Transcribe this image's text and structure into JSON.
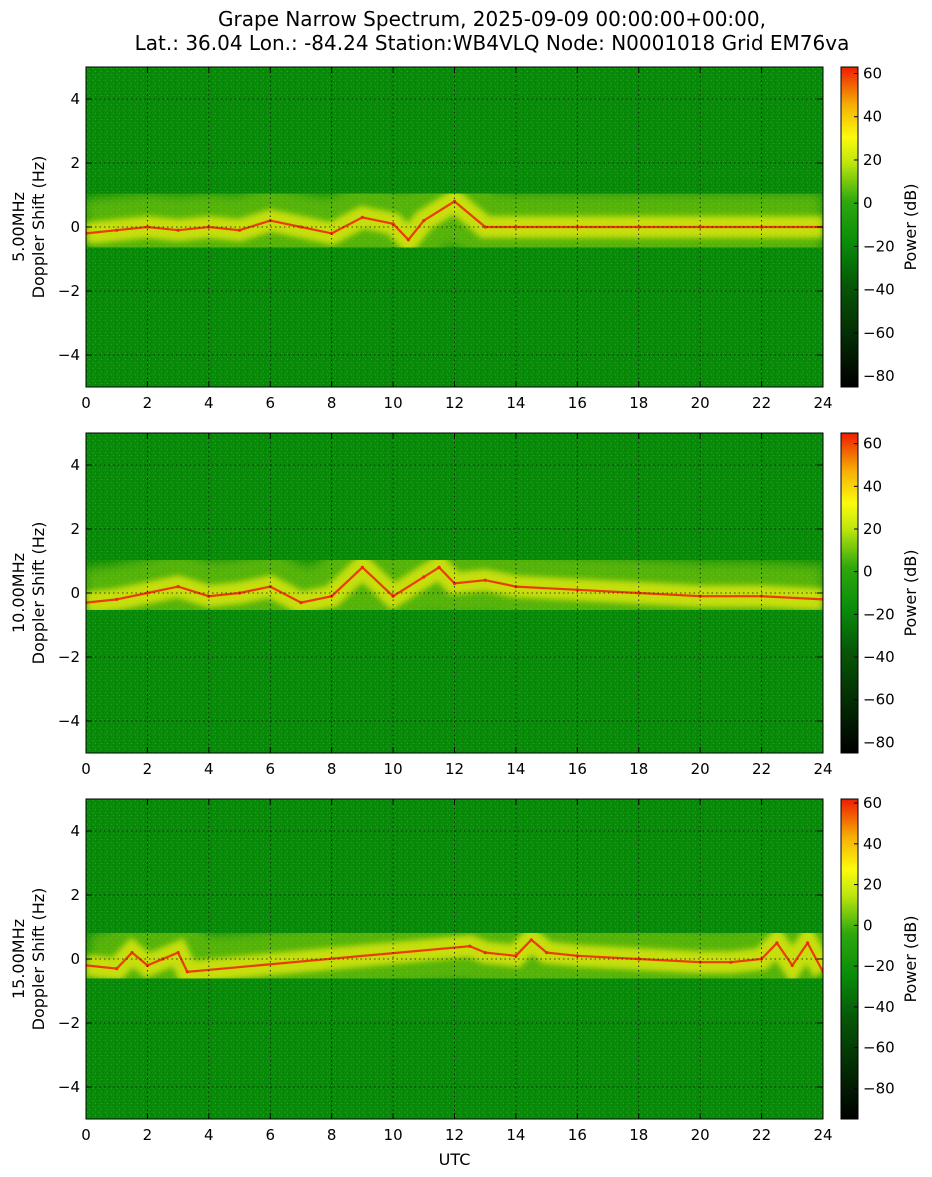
{
  "title_lines": [
    "Grape Narrow Spectrum, 2025-09-09 00:00:00+00:00,",
    "Lat.: 36.04 Lon.: -84.24 Station:WB4VLQ Node: N0001018 Grid EM76va"
  ],
  "chart_data": [
    {
      "type": "heatmap",
      "ylabel_lines": [
        "5.00MHz",
        "Doppler Shift (Hz)"
      ],
      "xlabel": "",
      "xlim": [
        0,
        24
      ],
      "ylim": [
        -5,
        5
      ],
      "xticks": [
        0,
        2,
        4,
        6,
        8,
        10,
        12,
        14,
        16,
        18,
        20,
        22,
        24
      ],
      "yticks": [
        4,
        2,
        0,
        -2,
        -4
      ],
      "grid": true,
      "colorbar": {
        "label": "Power (dB)",
        "range": [
          -85,
          63
        ],
        "ticks": [
          60,
          40,
          20,
          0,
          -20,
          -40,
          -60,
          -80
        ]
      },
      "carrier_trace": {
        "utc": [
          0,
          1,
          2,
          3,
          4,
          5,
          6,
          7,
          8,
          9,
          10,
          10.5,
          11,
          12,
          13,
          14,
          16,
          18,
          20,
          22,
          24
        ],
        "doppler_hz": [
          -0.2,
          -0.1,
          0,
          -0.1,
          0,
          -0.1,
          0.2,
          0,
          -0.2,
          0.3,
          0.1,
          -0.4,
          0.2,
          0.8,
          0,
          0,
          0,
          0,
          0,
          0,
          0
        ]
      }
    },
    {
      "type": "heatmap",
      "ylabel_lines": [
        "10.00MHz",
        "Doppler Shift (Hz)"
      ],
      "xlabel": "",
      "xlim": [
        0,
        24
      ],
      "ylim": [
        -5,
        5
      ],
      "xticks": [
        0,
        2,
        4,
        6,
        8,
        10,
        12,
        14,
        16,
        18,
        20,
        22,
        24
      ],
      "yticks": [
        4,
        2,
        0,
        -2,
        -4
      ],
      "grid": true,
      "colorbar": {
        "label": "Power (dB)",
        "range": [
          -85,
          65
        ],
        "ticks": [
          60,
          40,
          20,
          0,
          -20,
          -40,
          -60,
          -80
        ]
      },
      "carrier_trace": {
        "utc": [
          0,
          1,
          2,
          3,
          4,
          5,
          6,
          7,
          8,
          9,
          10,
          11,
          11.5,
          12,
          13,
          14,
          16,
          18,
          20,
          22,
          24
        ],
        "doppler_hz": [
          -0.3,
          -0.2,
          0,
          0.2,
          -0.1,
          0,
          0.2,
          -0.3,
          -0.1,
          0.8,
          -0.1,
          0.5,
          0.8,
          0.3,
          0.4,
          0.2,
          0.1,
          0,
          -0.1,
          -0.1,
          -0.2
        ]
      }
    },
    {
      "type": "heatmap",
      "ylabel_lines": [
        "15.00MHz",
        "Doppler Shift (Hz)"
      ],
      "xlabel": "UTC",
      "xlim": [
        0,
        24
      ],
      "ylim": [
        -5,
        5
      ],
      "xticks": [
        0,
        2,
        4,
        6,
        8,
        10,
        12,
        14,
        16,
        18,
        20,
        22,
        24
      ],
      "yticks": [
        4,
        2,
        0,
        -2,
        -4
      ],
      "grid": true,
      "colorbar": {
        "label": "Power (dB)",
        "range": [
          -95,
          62
        ],
        "ticks": [
          60,
          40,
          20,
          0,
          -20,
          -40,
          -60,
          -80
        ]
      },
      "carrier_trace": {
        "utc": [
          0,
          1,
          1.5,
          2,
          2.5,
          3,
          3.3,
          12.5,
          13,
          14,
          14.5,
          15,
          16,
          18,
          20,
          21,
          22,
          22.5,
          23,
          23.5,
          24
        ],
        "doppler_hz": [
          -0.2,
          -0.3,
          0.2,
          -0.2,
          0,
          0.2,
          -0.4,
          0.4,
          0.2,
          0.1,
          0.6,
          0.2,
          0.1,
          0,
          -0.1,
          -0.1,
          0,
          0.5,
          -0.2,
          0.5,
          -0.4
        ]
      }
    }
  ],
  "colors": {
    "background_green": "#078b08",
    "mid_yellow_green": "#b5e60e",
    "strong_yellow": "#f6f10c",
    "peak_red": "#ee2a04",
    "grid": "#111111"
  }
}
